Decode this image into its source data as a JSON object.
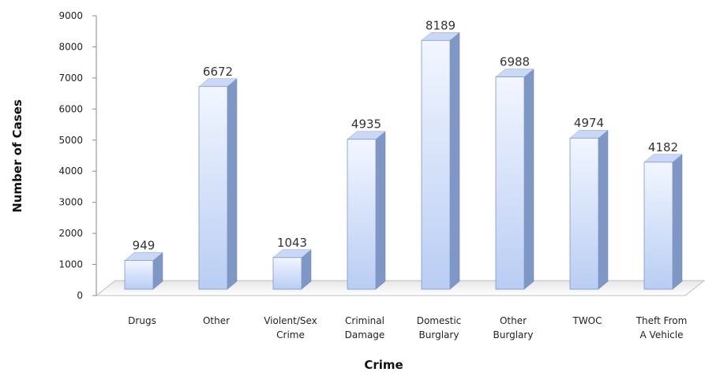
{
  "chart_data": {
    "type": "bar",
    "title": "",
    "xlabel": "Crime",
    "ylabel": "Number of Cases",
    "ylim": [
      0,
      9000
    ],
    "yticks": [
      0,
      1000,
      2000,
      3000,
      4000,
      5000,
      6000,
      7000,
      8000,
      9000
    ],
    "categories": [
      [
        "Drugs"
      ],
      [
        "Other"
      ],
      [
        "Violent/Sex",
        "Crime"
      ],
      [
        "Criminal",
        "Damage"
      ],
      [
        "Domestic",
        "Burglary"
      ],
      [
        "Other",
        "Burglary"
      ],
      [
        "TWOC"
      ],
      [
        "Theft From",
        "A Vehicle"
      ]
    ],
    "values": [
      949,
      6672,
      1043,
      4935,
      8189,
      6988,
      4974,
      4182
    ],
    "data_labels": [
      "949",
      "6672",
      "1043",
      "4935",
      "8189",
      "6988",
      "4974",
      "4182"
    ],
    "grid": false,
    "legend": "none",
    "style": "3d-bar",
    "colors": {
      "bar_front_top": "#f2f6ff",
      "bar_front_bottom": "#b9cdf3",
      "bar_side": "#7f97c4",
      "bar_top": "#c9d8f4",
      "axis": "#8a8a8a"
    }
  }
}
